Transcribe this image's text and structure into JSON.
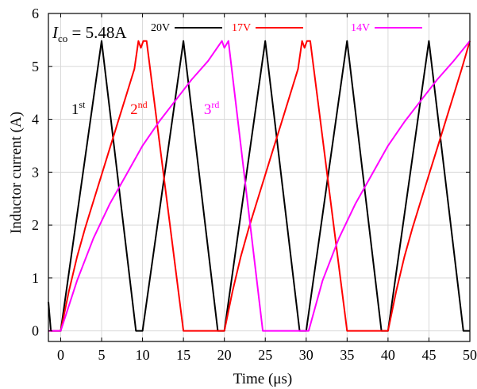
{
  "chart_data": {
    "type": "line",
    "xlabel": "Time (μs)",
    "ylabel": "Inductor current (A)",
    "xlim": [
      -1.5,
      50
    ],
    "ylim": [
      -0.2,
      6
    ],
    "xticks": [
      0,
      5,
      10,
      15,
      20,
      25,
      30,
      35,
      40,
      45,
      50
    ],
    "yticks": [
      0,
      1,
      2,
      3,
      4,
      5,
      6
    ],
    "grid": true,
    "annotation": {
      "symbol": "I",
      "subscript": "co",
      "text": " = 5.48A"
    },
    "curve_labels": [
      {
        "text": "1",
        "sup": "st",
        "x": 1.3,
        "y": 4.1,
        "color": "#000000"
      },
      {
        "text": "2",
        "sup": "nd",
        "x": 8.5,
        "y": 4.1,
        "color": "#ff0000"
      },
      {
        "text": "3",
        "sup": "rd",
        "x": 17.5,
        "y": 4.1,
        "color": "#ff00ff"
      }
    ],
    "series": [
      {
        "name": "20V",
        "color": "#000000",
        "x": [
          -1.5,
          -1.2,
          0,
          5,
          9.2,
          10,
          15,
          19.2,
          20,
          25,
          29.2,
          30,
          35,
          39.2,
          40,
          45,
          49.2,
          50
        ],
        "y": [
          0.55,
          0,
          0,
          5.48,
          0,
          0,
          5.48,
          0,
          0,
          5.48,
          0,
          0,
          5.48,
          0,
          0,
          5.48,
          0,
          0
        ]
      },
      {
        "name": "17V",
        "color": "#ff0000",
        "x": [
          -1.5,
          0,
          1,
          2,
          3,
          4,
          5,
          6,
          7,
          8,
          9,
          9.5,
          9.8,
          10.1,
          10.5,
          15,
          20,
          21,
          22,
          23,
          24,
          25,
          26,
          27,
          28,
          29,
          29.5,
          29.8,
          30.1,
          30.5,
          35,
          40,
          41,
          42,
          43,
          44,
          45,
          46,
          47,
          48,
          49,
          50
        ],
        "y": [
          0,
          0,
          0.75,
          1.4,
          1.95,
          2.45,
          2.95,
          3.45,
          3.95,
          4.45,
          4.95,
          5.48,
          5.35,
          5.48,
          5.48,
          0,
          0,
          0.75,
          1.4,
          1.95,
          2.45,
          2.95,
          3.45,
          3.95,
          4.45,
          4.95,
          5.48,
          5.35,
          5.48,
          5.48,
          0,
          0,
          0.75,
          1.4,
          1.95,
          2.45,
          2.95,
          3.45,
          3.95,
          4.45,
          4.95,
          5.48
        ]
      },
      {
        "name": "14V",
        "color": "#ff00ff",
        "x": [
          -1.5,
          0,
          2,
          4,
          6,
          8,
          10,
          12,
          14,
          16,
          18,
          19.7,
          20.0,
          20.5,
          24.7,
          30.3,
          32,
          34,
          36,
          38,
          40,
          42,
          44,
          46,
          48,
          50
        ],
        "y": [
          0,
          0,
          0.95,
          1.75,
          2.4,
          2.95,
          3.5,
          3.95,
          4.35,
          4.75,
          5.1,
          5.48,
          5.35,
          5.48,
          0,
          0,
          0.95,
          1.75,
          2.4,
          2.95,
          3.5,
          3.95,
          4.35,
          4.75,
          5.1,
          5.48
        ]
      }
    ]
  }
}
